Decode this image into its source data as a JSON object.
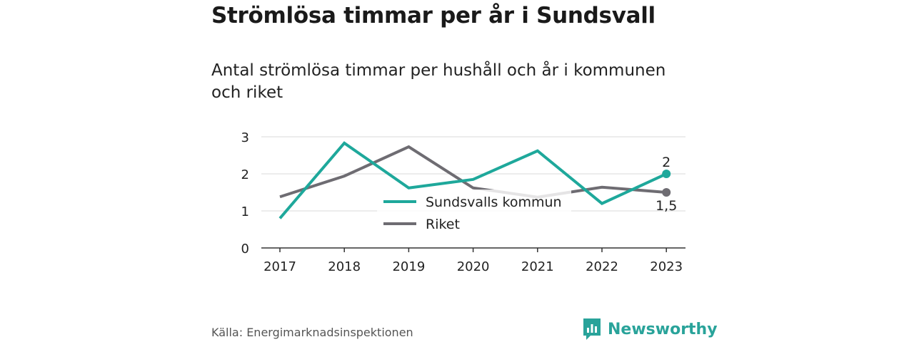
{
  "title": "Strömlösa timmar per år i Sundsvall",
  "subtitle": "Antal strömlösa timmar per hushåll och år i kommunen och riket",
  "source": "Källa: Energimarknadsinspektionen",
  "brand": {
    "name": "Newsworthy",
    "color": "#29a39a",
    "icon": "bar-chart-speech-bubble-icon"
  },
  "chart_data": {
    "type": "line",
    "x": [
      "2017",
      "2018",
      "2019",
      "2020",
      "2021",
      "2022",
      "2023"
    ],
    "ylim": [
      0,
      3
    ],
    "yticks": [
      "0",
      "1",
      "2",
      "3"
    ],
    "grid": true,
    "legend_placement": "center",
    "series": [
      {
        "name": "Sundsvalls kommun",
        "color": "#1ea89b",
        "values": [
          0.8,
          2.83,
          1.62,
          1.85,
          2.62,
          1.2,
          2.0
        ],
        "end_label": "2"
      },
      {
        "name": "Riket",
        "color": "#6e6c72",
        "values": [
          1.38,
          1.94,
          2.73,
          1.62,
          1.37,
          1.64,
          1.5
        ],
        "end_label": "1,5"
      }
    ]
  }
}
